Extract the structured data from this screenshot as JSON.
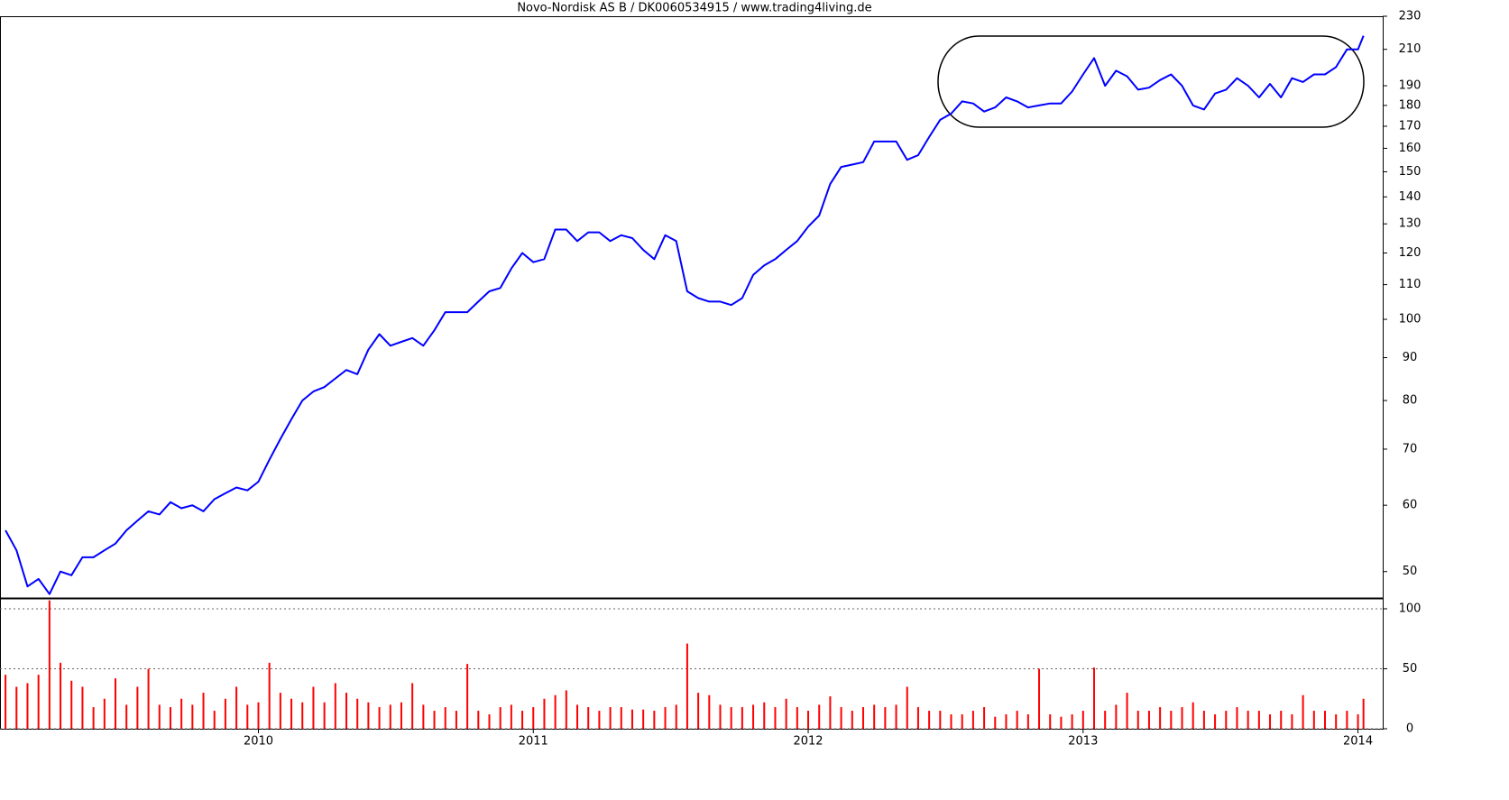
{
  "chart_data": [
    {
      "type": "line",
      "title": "Novo-Nordisk AS B / DK0060534915 / www.trading4living.de",
      "color": "#0000ff",
      "log_scale": true,
      "xlim": [
        2009.06,
        2014.09
      ],
      "ylim": [
        46.5,
        230
      ],
      "yticks": [
        50,
        60,
        70,
        80,
        90,
        100,
        110,
        120,
        130,
        140,
        150,
        160,
        170,
        180,
        190,
        210,
        230
      ],
      "x": [
        2009.08,
        2009.12,
        2009.16,
        2009.2,
        2009.24,
        2009.28,
        2009.32,
        2009.36,
        2009.4,
        2009.44,
        2009.48,
        2009.52,
        2009.56,
        2009.6,
        2009.64,
        2009.68,
        2009.72,
        2009.76,
        2009.8,
        2009.84,
        2009.88,
        2009.92,
        2009.96,
        2010,
        2010.04,
        2010.08,
        2010.12,
        2010.16,
        2010.2,
        2010.24,
        2010.28,
        2010.32,
        2010.36,
        2010.4,
        2010.44,
        2010.48,
        2010.52,
        2010.56,
        2010.6,
        2010.64,
        2010.68,
        2010.72,
        2010.76,
        2010.8,
        2010.84,
        2010.88,
        2010.92,
        2010.96,
        2011,
        2011.04,
        2011.08,
        2011.12,
        2011.16,
        2011.2,
        2011.24,
        2011.28,
        2011.32,
        2011.36,
        2011.4,
        2011.44,
        2011.48,
        2011.52,
        2011.56,
        2011.6,
        2011.64,
        2011.68,
        2011.72,
        2011.76,
        2011.8,
        2011.84,
        2011.88,
        2011.92,
        2011.96,
        2012,
        2012.04,
        2012.08,
        2012.12,
        2012.16,
        2012.2,
        2012.24,
        2012.28,
        2012.32,
        2012.36,
        2012.4,
        2012.44,
        2012.48,
        2012.52,
        2012.56,
        2012.6,
        2012.64,
        2012.68,
        2012.72,
        2012.76,
        2012.8,
        2012.84,
        2012.88,
        2012.92,
        2012.96,
        2013,
        2013.04,
        2013.08,
        2013.12,
        2013.16,
        2013.2,
        2013.24,
        2013.28,
        2013.32,
        2013.36,
        2013.4,
        2013.44,
        2013.48,
        2013.52,
        2013.56,
        2013.6,
        2013.64,
        2013.68,
        2013.72,
        2013.76,
        2013.8,
        2013.84,
        2013.88,
        2013.92,
        2013.96,
        2014,
        2014.02
      ],
      "values": [
        56,
        53,
        48,
        49,
        47,
        50,
        49.5,
        52,
        52,
        53,
        54,
        56,
        57.5,
        59,
        58.5,
        60.5,
        59.5,
        60,
        59,
        61,
        62,
        63,
        62.5,
        64,
        68,
        72,
        76,
        80,
        82,
        83,
        85,
        87,
        86,
        92,
        96,
        93,
        94,
        95,
        93,
        97,
        102,
        102,
        102,
        105,
        108,
        109,
        115,
        120,
        117,
        118,
        128,
        128,
        124,
        127,
        127,
        124,
        126,
        125,
        121,
        118,
        126,
        124,
        108,
        106,
        105,
        105,
        104,
        106,
        113,
        116,
        118,
        121,
        124,
        129,
        133,
        145,
        152,
        153,
        154,
        163,
        163,
        163,
        155,
        157,
        165,
        173,
        176,
        182,
        181,
        177,
        179,
        184,
        182,
        179,
        180,
        181,
        181,
        187,
        196,
        205,
        190,
        198,
        195,
        188,
        189,
        193,
        196,
        190,
        180,
        178,
        186,
        188,
        194,
        190,
        184,
        191,
        184,
        194,
        192,
        196,
        196,
        200,
        210,
        210,
        218
      ]
    },
    {
      "type": "bar",
      "color": "#ff0000",
      "grid": true,
      "xlim": [
        2009.06,
        2014.09
      ],
      "xticks": [
        2010,
        2011,
        2012,
        2013,
        2014
      ],
      "ylim": [
        0,
        109
      ],
      "yticks": [
        0,
        50,
        100
      ],
      "x": [
        2009.08,
        2009.12,
        2009.16,
        2009.2,
        2009.24,
        2009.28,
        2009.32,
        2009.36,
        2009.4,
        2009.44,
        2009.48,
        2009.52,
        2009.56,
        2009.6,
        2009.64,
        2009.68,
        2009.72,
        2009.76,
        2009.8,
        2009.84,
        2009.88,
        2009.92,
        2009.96,
        2010,
        2010.04,
        2010.08,
        2010.12,
        2010.16,
        2010.2,
        2010.24,
        2010.28,
        2010.32,
        2010.36,
        2010.4,
        2010.44,
        2010.48,
        2010.52,
        2010.56,
        2010.6,
        2010.64,
        2010.68,
        2010.72,
        2010.76,
        2010.8,
        2010.84,
        2010.88,
        2010.92,
        2010.96,
        2011,
        2011.04,
        2011.08,
        2011.12,
        2011.16,
        2011.2,
        2011.24,
        2011.28,
        2011.32,
        2011.36,
        2011.4,
        2011.44,
        2011.48,
        2011.52,
        2011.56,
        2011.6,
        2011.64,
        2011.68,
        2011.72,
        2011.76,
        2011.8,
        2011.84,
        2011.88,
        2011.92,
        2011.96,
        2012,
        2012.04,
        2012.08,
        2012.12,
        2012.16,
        2012.2,
        2012.24,
        2012.28,
        2012.32,
        2012.36,
        2012.4,
        2012.44,
        2012.48,
        2012.52,
        2012.56,
        2012.6,
        2012.64,
        2012.68,
        2012.72,
        2012.76,
        2012.8,
        2012.84,
        2012.88,
        2012.92,
        2012.96,
        2013,
        2013.04,
        2013.08,
        2013.12,
        2013.16,
        2013.2,
        2013.24,
        2013.28,
        2013.32,
        2013.36,
        2013.4,
        2013.44,
        2013.48,
        2013.52,
        2013.56,
        2013.6,
        2013.64,
        2013.68,
        2013.72,
        2013.76,
        2013.8,
        2013.84,
        2013.88,
        2013.92,
        2013.96,
        2014,
        2014.02
      ],
      "values": [
        45,
        35,
        38,
        45,
        107,
        55,
        40,
        35,
        18,
        25,
        42,
        20,
        35,
        50,
        20,
        18,
        25,
        20,
        30,
        15,
        25,
        35,
        20,
        22,
        55,
        30,
        25,
        22,
        35,
        22,
        38,
        30,
        25,
        22,
        18,
        20,
        22,
        38,
        20,
        15,
        18,
        15,
        54,
        15,
        12,
        18,
        20,
        15,
        18,
        25,
        28,
        32,
        20,
        18,
        15,
        18,
        18,
        16,
        16,
        15,
        18,
        20,
        71,
        30,
        28,
        20,
        18,
        18,
        20,
        22,
        18,
        25,
        18,
        15,
        20,
        27,
        18,
        15,
        18,
        20,
        18,
        20,
        35,
        18,
        15,
        15,
        12,
        12,
        15,
        18,
        10,
        12,
        15,
        12,
        50,
        12,
        10,
        12,
        15,
        51,
        15,
        20,
        30,
        15,
        15,
        18,
        15,
        18,
        22,
        15,
        12,
        15,
        18,
        15,
        15,
        12,
        15,
        12,
        28,
        15,
        15,
        12,
        15,
        12,
        25
      ]
    }
  ]
}
